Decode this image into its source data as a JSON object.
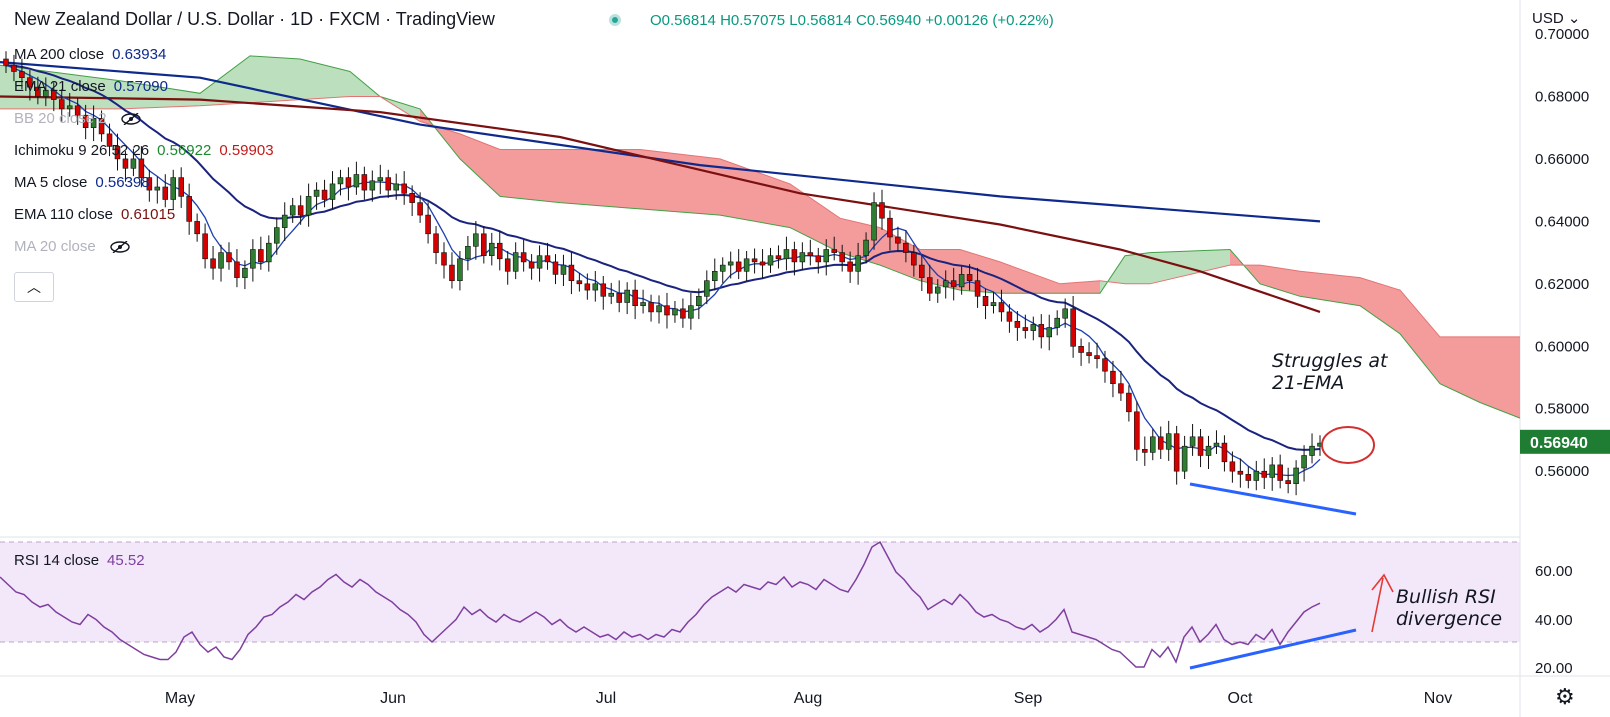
{
  "header": {
    "title": "New Zealand Dollar / U.S. Dollar · 1D · FXCM · TradingView",
    "open": "O0.56814",
    "high": "H0.57075",
    "low": "L0.56814",
    "close": "C0.56940",
    "change": "+0.00126 (+0.22%)"
  },
  "currency": "USD",
  "legend": [
    {
      "label": "MA 200 close",
      "value": "0.63934",
      "color": "#0d2a8c"
    },
    {
      "label": "EMA 21 close",
      "value": "0.57090",
      "color": "#0d2a8c"
    },
    {
      "label": "BB 20 close 2",
      "value": "",
      "color": "#b0b3bd"
    },
    {
      "label": "Ichimoku 9 26 52 26",
      "value": "0.56922",
      "value2": "0.59903",
      "color": "#1b8a2e",
      "color2": "#c21b1b"
    },
    {
      "label": "MA 5 close",
      "value": "0.56398",
      "color": "#0d2a8c"
    },
    {
      "label": "EMA 110 close",
      "value": "0.61015",
      "color": "#7a1010"
    },
    {
      "label": "MA 20 close",
      "value": "",
      "color": "#b0b3bd"
    }
  ],
  "rsi_legend": {
    "label": "RSI 14 close",
    "value": "45.52"
  },
  "annotations": {
    "ema": "Struggles at\n21-EMA",
    "rsi": "Bullish RSI\ndivergence"
  },
  "price_axis_labels": [
    "0.70000",
    "0.68000",
    "0.66000",
    "0.64000",
    "0.62000",
    "0.60000",
    "0.58000",
    "0.56000"
  ],
  "rsi_axis_labels": [
    "60.00",
    "40.00",
    "20.00"
  ],
  "last_price": "0.56940",
  "chart_data": {
    "type": "candlestick",
    "title": "New Zealand Dollar / U.S. Dollar · 1D · FXCM",
    "x_labels": [
      "May",
      "Jun",
      "Jul",
      "Aug",
      "Sep",
      "Oct",
      "Nov"
    ],
    "price_range": [
      0.545,
      0.7
    ],
    "closes": [
      0.69,
      0.688,
      0.686,
      0.683,
      0.68,
      0.682,
      0.679,
      0.676,
      0.677,
      0.674,
      0.67,
      0.673,
      0.668,
      0.664,
      0.66,
      0.657,
      0.66,
      0.654,
      0.65,
      0.651,
      0.647,
      0.654,
      0.648,
      0.64,
      0.636,
      0.628,
      0.625,
      0.63,
      0.627,
      0.622,
      0.625,
      0.631,
      0.627,
      0.633,
      0.638,
      0.642,
      0.645,
      0.642,
      0.648,
      0.65,
      0.647,
      0.652,
      0.654,
      0.651,
      0.655,
      0.65,
      0.653,
      0.654,
      0.65,
      0.652,
      0.649,
      0.646,
      0.642,
      0.636,
      0.63,
      0.626,
      0.621,
      0.628,
      0.632,
      0.636,
      0.629,
      0.633,
      0.628,
      0.624,
      0.63,
      0.627,
      0.625,
      0.629,
      0.627,
      0.623,
      0.626,
      0.621,
      0.62,
      0.618,
      0.62,
      0.616,
      0.617,
      0.614,
      0.618,
      0.613,
      0.614,
      0.611,
      0.613,
      0.61,
      0.612,
      0.609,
      0.613,
      0.616,
      0.621,
      0.624,
      0.626,
      0.627,
      0.624,
      0.628,
      0.627,
      0.626,
      0.629,
      0.628,
      0.631,
      0.627,
      0.63,
      0.629,
      0.627,
      0.631,
      0.63,
      0.627,
      0.624,
      0.629,
      0.634,
      0.646,
      0.641,
      0.635,
      0.633,
      0.63,
      0.626,
      0.622,
      0.617,
      0.619,
      0.621,
      0.619,
      0.623,
      0.621,
      0.616,
      0.613,
      0.614,
      0.611,
      0.608,
      0.606,
      0.605,
      0.607,
      0.603,
      0.606,
      0.609,
      0.612,
      0.6,
      0.598,
      0.597,
      0.596,
      0.592,
      0.588,
      0.585,
      0.579,
      0.567,
      0.566,
      0.571,
      0.567,
      0.572,
      0.56,
      0.568,
      0.571,
      0.565,
      0.568,
      0.569,
      0.563,
      0.56,
      0.559,
      0.557,
      0.56,
      0.558,
      0.562,
      0.557,
      0.556,
      0.561,
      0.565,
      0.568,
      0.569
    ],
    "ma200": [
      0.691,
      0.671,
      0.658,
      0.648,
      0.64
    ],
    "ema110": [
      0.68,
      0.675,
      0.662,
      0.647,
      0.634,
      0.611
    ],
    "ema21_last": 0.5709,
    "ma5_last": 0.56398,
    "ichimoku_tenkan_last": 0.56922,
    "ichimoku_kijun_last": 0.59903,
    "last_close": 0.5694,
    "rsi": {
      "name": "RSI 14 close",
      "range": [
        18,
        72
      ],
      "bands": [
        30,
        70
      ],
      "last": 45.52,
      "values": [
        56,
        53,
        50,
        49,
        46,
        44,
        45,
        42,
        40,
        38,
        37,
        41,
        39,
        36,
        34,
        31,
        29,
        27,
        25,
        24,
        23,
        23,
        26,
        32,
        34,
        29,
        26,
        28,
        24,
        23,
        27,
        33,
        36,
        40,
        41,
        44,
        46,
        49,
        47,
        50,
        52,
        55,
        57,
        54,
        52,
        55,
        53,
        50,
        48,
        46,
        43,
        41,
        38,
        33,
        30,
        33,
        36,
        39,
        44,
        41,
        43,
        40,
        38,
        41,
        39,
        38,
        40,
        42,
        40,
        37,
        39,
        36,
        34,
        36,
        34,
        32,
        33,
        31,
        34,
        32,
        33,
        31,
        33,
        32,
        35,
        34,
        38,
        41,
        45,
        48,
        50,
        52,
        50,
        53,
        52,
        51,
        54,
        53,
        56,
        52,
        54,
        53,
        51,
        55,
        53,
        51,
        50,
        55,
        61,
        68,
        70,
        64,
        58,
        55,
        51,
        48,
        43,
        45,
        47,
        45,
        49,
        46,
        42,
        40,
        41,
        39,
        38,
        36,
        35,
        37,
        34,
        36,
        39,
        43,
        34,
        33,
        32,
        31,
        29,
        27,
        26,
        23,
        20,
        20,
        27,
        24,
        28,
        22,
        32,
        36,
        30,
        33,
        37,
        31,
        29,
        30,
        29,
        33,
        31,
        35,
        29,
        34,
        38,
        42,
        44,
        45.52
      ]
    }
  }
}
